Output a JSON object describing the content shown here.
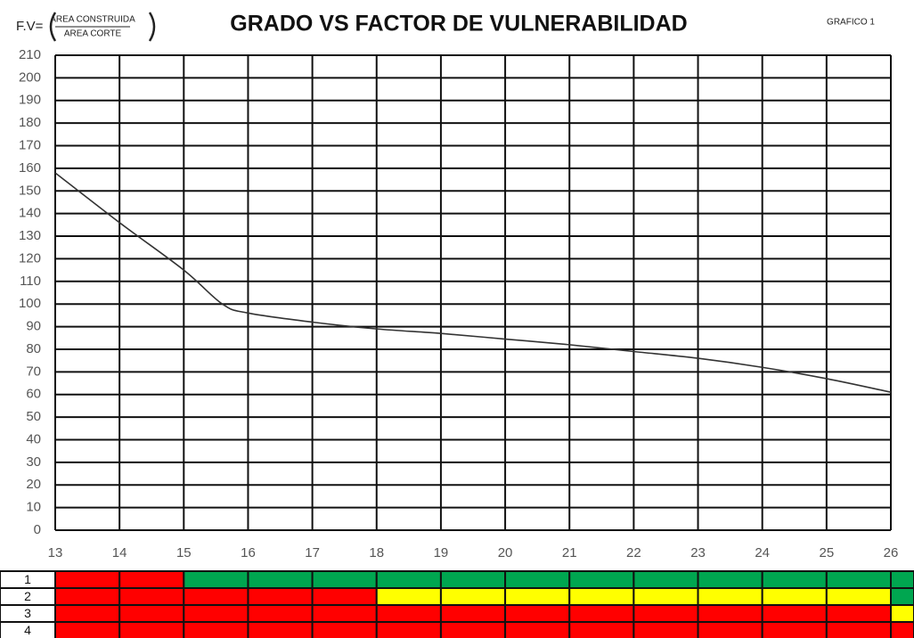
{
  "chart_data": {
    "type": "line",
    "title": "GRADO VS FACTOR DE VULNERABILIDAD",
    "formula_lhs": "F.V=",
    "formula_numerator": "AREA CONSTRUIDA",
    "formula_denominator": "AREA CORTE",
    "chart_label": "GRAFICO 1",
    "x": [
      13,
      14,
      15,
      15.6,
      16,
      17,
      18,
      19,
      20,
      21,
      22,
      23,
      24,
      25,
      26
    ],
    "series": [
      {
        "color": "#333333",
        "values": [
          158,
          136,
          115,
          100,
          96,
          92,
          89,
          87,
          84.5,
          82,
          79,
          76,
          72,
          67,
          61
        ]
      }
    ],
    "xlim": [
      13,
      26
    ],
    "xticks": [
      13,
      14,
      15,
      16,
      17,
      18,
      19,
      20,
      21,
      22,
      23,
      24,
      25,
      26
    ],
    "ylim": [
      0,
      210
    ],
    "yticks": [
      0,
      10,
      20,
      30,
      40,
      50,
      60,
      70,
      80,
      90,
      100,
      110,
      120,
      130,
      140,
      150,
      160,
      170,
      180,
      190,
      200,
      210
    ],
    "grid": true,
    "bands": [
      {
        "label": "1",
        "colors": [
          "#ff0000",
          "#ff0000",
          "#00a650",
          "#00a650",
          "#00a650",
          "#00a650",
          "#00a650",
          "#00a650",
          "#00a650",
          "#00a650",
          "#00a650",
          "#00a650",
          "#00a650",
          "#00a650"
        ]
      },
      {
        "label": "2",
        "colors": [
          "#ff0000",
          "#ff0000",
          "#ff0000",
          "#ff0000",
          "#ff0000",
          "#ffff00",
          "#ffff00",
          "#ffff00",
          "#ffff00",
          "#ffff00",
          "#ffff00",
          "#ffff00",
          "#ffff00",
          "#00a650"
        ]
      },
      {
        "label": "3",
        "colors": [
          "#ff0000",
          "#ff0000",
          "#ff0000",
          "#ff0000",
          "#ff0000",
          "#ff0000",
          "#ff0000",
          "#ff0000",
          "#ff0000",
          "#ff0000",
          "#ff0000",
          "#ff0000",
          "#ff0000",
          "#ffff00"
        ]
      },
      {
        "label": "4",
        "colors": [
          "#ff0000",
          "#ff0000",
          "#ff0000",
          "#ff0000",
          "#ff0000",
          "#ff0000",
          "#ff0000",
          "#ff0000",
          "#ff0000",
          "#ff0000",
          "#ff0000",
          "#ff0000",
          "#ff0000",
          "#ff0000"
        ]
      }
    ]
  }
}
